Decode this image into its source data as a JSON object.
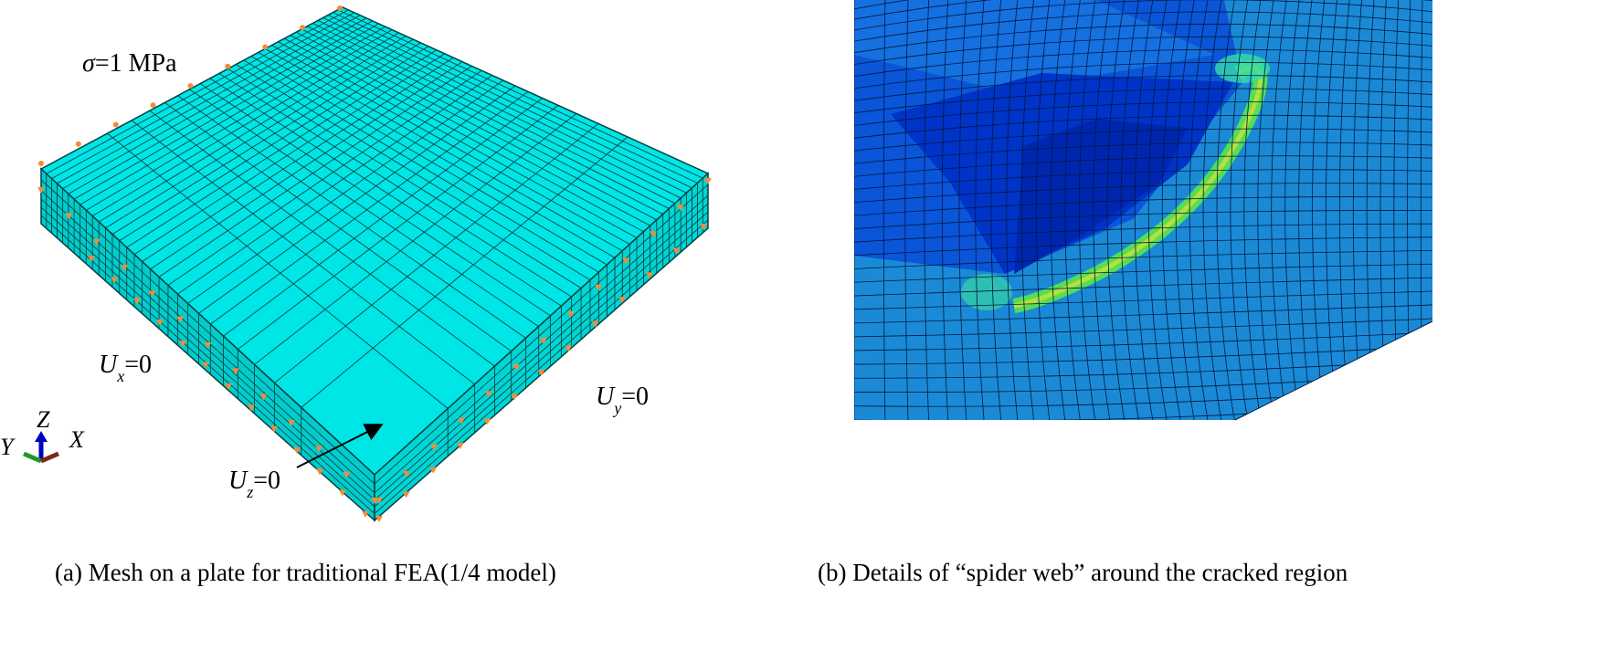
{
  "panel_a": {
    "load_label": {
      "symbol": "σ",
      "rest": "=1 MPa"
    },
    "bc_labels": [
      {
        "main": "U",
        "sub": "x",
        "rest": "=0"
      },
      {
        "main": "U",
        "sub": "y",
        "rest": "=0"
      },
      {
        "main": "U",
        "sub": "z",
        "rest": "=0"
      }
    ],
    "axes": {
      "z": "Z",
      "y": "Y",
      "x": "X"
    },
    "caption": "(a)  Mesh on a plate for traditional FEA(1/4 model)"
  },
  "panel_b": {
    "caption": "(b)  Details of “spider web” around  the cracked region"
  }
}
